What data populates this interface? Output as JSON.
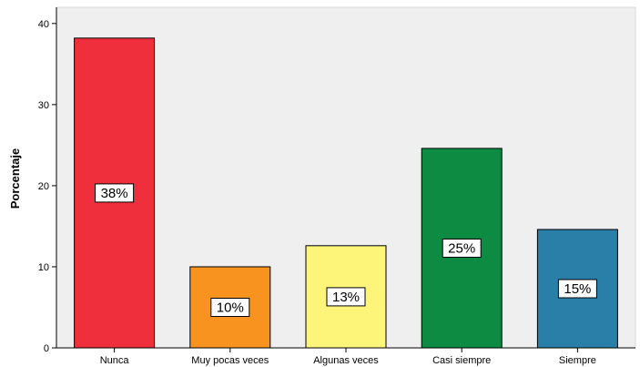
{
  "chart_data": {
    "type": "bar",
    "title": "",
    "xlabel": "",
    "ylabel": "Porcentaje",
    "ylim": [
      0,
      42
    ],
    "yticks": [
      0,
      10,
      20,
      30,
      40
    ],
    "grid": false,
    "categories": [
      "Nunca",
      "Muy pocas veces",
      "Algunas veces",
      "Casi siempre",
      "Siempre"
    ],
    "values": [
      38.2,
      10.0,
      12.6,
      24.6,
      14.6
    ],
    "data_labels": [
      "38%",
      "10%",
      "13%",
      "25%",
      "15%"
    ],
    "colors": [
      "#ef2f3c",
      "#f7931e",
      "#fdf57a",
      "#0e8b43",
      "#2a7fa9"
    ],
    "plot_background": "#efefef"
  }
}
